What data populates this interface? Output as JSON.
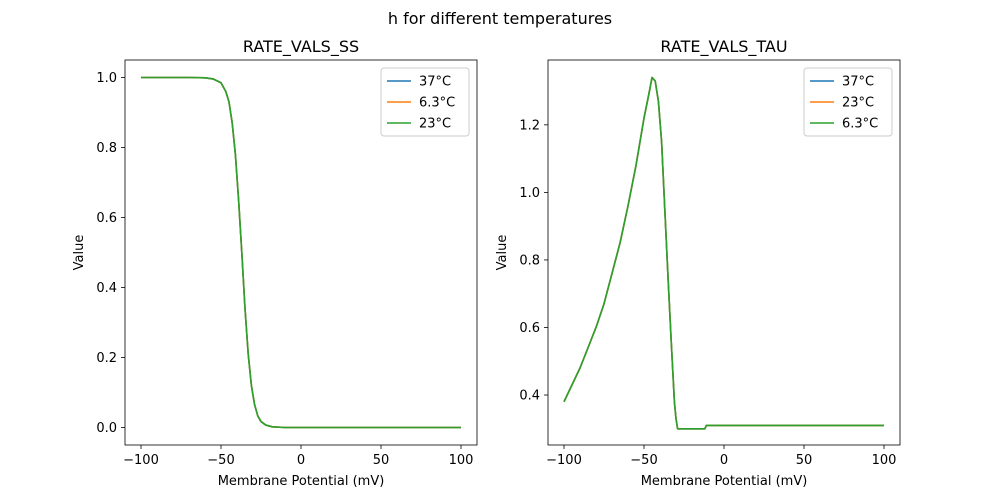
{
  "figure": {
    "suptitle": "h for different temperatures"
  },
  "chart_data": [
    {
      "type": "line",
      "title": "RATE_VALS_SS",
      "xlabel": "Membrane Potential (mV)",
      "ylabel": "Value",
      "xlim": [
        -110,
        110
      ],
      "ylim": [
        -0.05,
        1.05
      ],
      "xticks": [
        -100,
        -50,
        0,
        50,
        100
      ],
      "yticks": [
        0.0,
        0.2,
        0.4,
        0.6,
        0.8,
        1.0
      ],
      "xtick_labels": [
        "−100",
        "−50",
        "0",
        "50",
        "100"
      ],
      "ytick_labels": [
        "0.0",
        "0.2",
        "0.4",
        "0.6",
        "0.8",
        "1.0"
      ],
      "grid": false,
      "legend": "top-right",
      "x": [
        -100,
        -90,
        -80,
        -70,
        -60,
        -55,
        -50,
        -47,
        -45,
        -43,
        -41,
        -39,
        -37,
        -35,
        -33,
        -31,
        -29,
        -27,
        -25,
        -22,
        -18,
        -10,
        0,
        20,
        50,
        100
      ],
      "series": [
        {
          "name": "37°C",
          "color": "#1f77b4",
          "values": [
            1.0,
            1.0,
            1.0,
            1.0,
            0.999,
            0.996,
            0.985,
            0.96,
            0.93,
            0.87,
            0.78,
            0.65,
            0.5,
            0.34,
            0.21,
            0.12,
            0.065,
            0.033,
            0.017,
            0.007,
            0.002,
            0.0,
            0.0,
            0.0,
            0.0,
            0.0
          ]
        },
        {
          "name": "6.3°C",
          "color": "#ff7f0e",
          "values": [
            1.0,
            1.0,
            1.0,
            1.0,
            0.999,
            0.996,
            0.985,
            0.96,
            0.93,
            0.87,
            0.78,
            0.65,
            0.5,
            0.34,
            0.21,
            0.12,
            0.065,
            0.033,
            0.017,
            0.007,
            0.002,
            0.0,
            0.0,
            0.0,
            0.0,
            0.0
          ]
        },
        {
          "name": "23°C",
          "color": "#2ca02c",
          "values": [
            1.0,
            1.0,
            1.0,
            1.0,
            0.999,
            0.996,
            0.985,
            0.96,
            0.93,
            0.87,
            0.78,
            0.65,
            0.5,
            0.34,
            0.21,
            0.12,
            0.065,
            0.033,
            0.017,
            0.007,
            0.002,
            0.0,
            0.0,
            0.0,
            0.0,
            0.0
          ]
        }
      ]
    },
    {
      "type": "line",
      "title": "RATE_VALS_TAU",
      "xlabel": "Membrane Potential (mV)",
      "ylabel": "Value",
      "xlim": [
        -110,
        110
      ],
      "ylim": [
        0.252,
        1.392
      ],
      "xticks": [
        -100,
        -50,
        0,
        50,
        100
      ],
      "yticks": [
        0.4,
        0.6,
        0.8,
        1.0,
        1.2
      ],
      "xtick_labels": [
        "−100",
        "−50",
        "0",
        "50",
        "100"
      ],
      "ytick_labels": [
        "0.4",
        "0.6",
        "0.8",
        "1.0",
        "1.2"
      ],
      "grid": false,
      "legend": "top-right",
      "x": [
        -100,
        -95,
        -90,
        -85,
        -80,
        -75,
        -70,
        -65,
        -60,
        -55,
        -50,
        -47,
        -45,
        -43,
        -41,
        -39,
        -37,
        -35,
        -33,
        -31,
        -30,
        -29,
        -28,
        -20,
        -12,
        -11,
        0,
        50,
        100
      ],
      "series": [
        {
          "name": "37°C",
          "color": "#1f77b4",
          "values": [
            0.38,
            0.43,
            0.48,
            0.54,
            0.6,
            0.67,
            0.76,
            0.85,
            0.96,
            1.08,
            1.22,
            1.29,
            1.34,
            1.33,
            1.27,
            1.15,
            0.95,
            0.75,
            0.56,
            0.38,
            0.33,
            0.3,
            0.3,
            0.3,
            0.3,
            0.31,
            0.31,
            0.31,
            0.31
          ]
        },
        {
          "name": "23°C",
          "color": "#ff7f0e",
          "values": [
            0.38,
            0.43,
            0.48,
            0.54,
            0.6,
            0.67,
            0.76,
            0.85,
            0.96,
            1.08,
            1.22,
            1.29,
            1.34,
            1.33,
            1.27,
            1.15,
            0.95,
            0.75,
            0.56,
            0.38,
            0.33,
            0.3,
            0.3,
            0.3,
            0.3,
            0.31,
            0.31,
            0.31,
            0.31
          ]
        },
        {
          "name": "6.3°C",
          "color": "#2ca02c",
          "values": [
            0.38,
            0.43,
            0.48,
            0.54,
            0.6,
            0.67,
            0.76,
            0.85,
            0.96,
            1.08,
            1.22,
            1.29,
            1.34,
            1.33,
            1.27,
            1.15,
            0.95,
            0.75,
            0.56,
            0.38,
            0.33,
            0.3,
            0.3,
            0.3,
            0.3,
            0.31,
            0.31,
            0.31,
            0.31
          ]
        }
      ]
    }
  ]
}
